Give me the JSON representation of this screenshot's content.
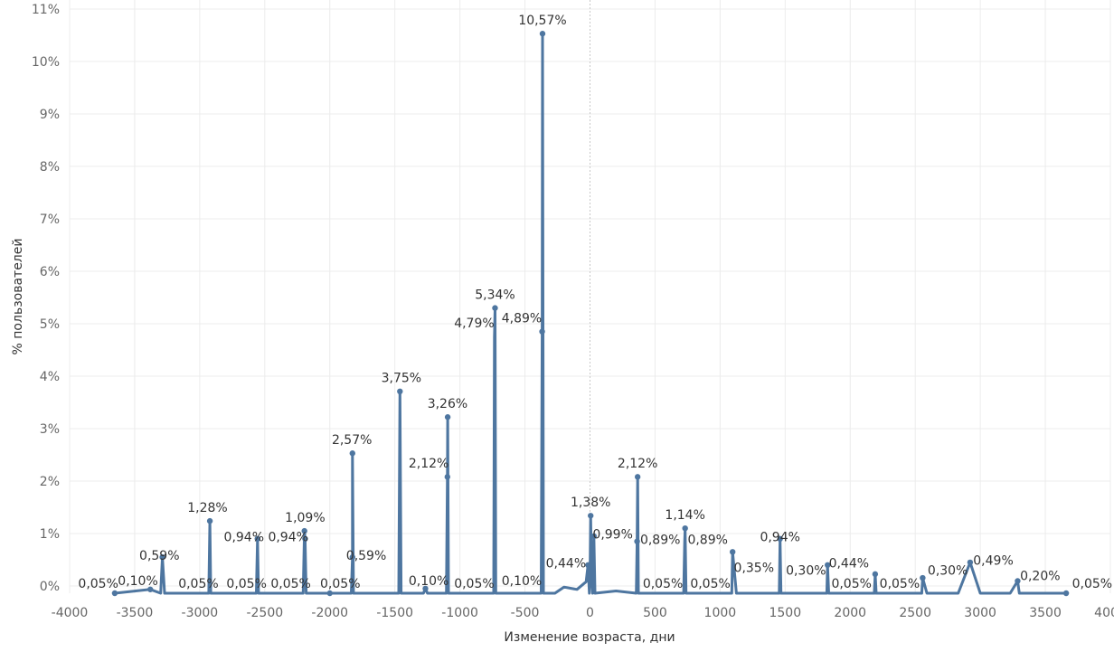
{
  "chart_data": {
    "type": "line",
    "xlabel": "Изменение возраста, дни",
    "ylabel": "% пользователей",
    "xlim": [
      -4000,
      4000
    ],
    "ylim": [
      0,
      11
    ],
    "y_unit": "%",
    "grid": true,
    "x_ticks": [
      {
        "value": -4000,
        "label": "-4000"
      },
      {
        "value": -3500,
        "label": "-3500"
      },
      {
        "value": -3000,
        "label": "-3000"
      },
      {
        "value": -2500,
        "label": "-2500"
      },
      {
        "value": -2000,
        "label": "-2000"
      },
      {
        "value": -1500,
        "label": "-1500"
      },
      {
        "value": -1000,
        "label": "-1000"
      },
      {
        "value": -500,
        "label": "-500"
      },
      {
        "value": 0,
        "label": "0"
      },
      {
        "value": 500,
        "label": "500"
      },
      {
        "value": 1000,
        "label": "1000"
      },
      {
        "value": 1500,
        "label": "1500"
      },
      {
        "value": 2000,
        "label": "2000"
      },
      {
        "value": 2500,
        "label": "2500"
      },
      {
        "value": 3000,
        "label": "3000"
      },
      {
        "value": 3500,
        "label": "3500"
      },
      {
        "value": 4000,
        "label": "4000"
      }
    ],
    "y_ticks": [
      {
        "value": 0,
        "label": "0%"
      },
      {
        "value": 1,
        "label": "1%"
      },
      {
        "value": 2,
        "label": "2%"
      },
      {
        "value": 3,
        "label": "3%"
      },
      {
        "value": 4,
        "label": "4%"
      },
      {
        "value": 5,
        "label": "5%"
      },
      {
        "value": 6,
        "label": "6%"
      },
      {
        "value": 7,
        "label": "7%"
      },
      {
        "value": 8,
        "label": "8%"
      },
      {
        "value": 9,
        "label": "9%"
      },
      {
        "value": 10,
        "label": "10%"
      },
      {
        "value": 11,
        "label": "11%"
      }
    ],
    "points": [
      {
        "x": -3653,
        "y": 0.0
      },
      {
        "x": -3380,
        "y": 0.05
      },
      {
        "x": -3300,
        "y": 0.0
      },
      {
        "x": -3287,
        "y": 0.55
      },
      {
        "x": -3270,
        "y": 0.0
      },
      {
        "x": -2930,
        "y": 0.0
      },
      {
        "x": -2922,
        "y": 1.24
      },
      {
        "x": -2915,
        "y": 0.0
      },
      {
        "x": -2565,
        "y": 0.0
      },
      {
        "x": -2556,
        "y": 0.9
      },
      {
        "x": -2548,
        "y": 0.0
      },
      {
        "x": -2205,
        "y": 0.0
      },
      {
        "x": -2195,
        "y": 1.05
      },
      {
        "x": -2190,
        "y": 0.9
      },
      {
        "x": -2182,
        "y": 0.0
      },
      {
        "x": -2000,
        "y": 0.0
      },
      {
        "x": -1835,
        "y": 0.0
      },
      {
        "x": -1826,
        "y": 0.55
      },
      {
        "x": -1826,
        "y": 2.53
      },
      {
        "x": -1818,
        "y": 0.0
      },
      {
        "x": -1600,
        "y": 0.0
      },
      {
        "x": -1470,
        "y": 0.0
      },
      {
        "x": -1461,
        "y": 3.71
      },
      {
        "x": -1452,
        "y": 0.0
      },
      {
        "x": -1280,
        "y": 0.0
      },
      {
        "x": -1265,
        "y": 0.06
      },
      {
        "x": -1250,
        "y": 0.0
      },
      {
        "x": -1104,
        "y": 0.0
      },
      {
        "x": -1096,
        "y": 2.08
      },
      {
        "x": -1094,
        "y": 3.22
      },
      {
        "x": -1088,
        "y": 0.0
      },
      {
        "x": -740,
        "y": 0.0
      },
      {
        "x": -735,
        "y": 4.75
      },
      {
        "x": -730,
        "y": 5.3
      },
      {
        "x": -724,
        "y": 0.0
      },
      {
        "x": -560,
        "y": 0.0
      },
      {
        "x": -375,
        "y": 0.0
      },
      {
        "x": -368,
        "y": 4.85
      },
      {
        "x": -365,
        "y": 10.53
      },
      {
        "x": -358,
        "y": 0.0
      },
      {
        "x": -270,
        "y": 0.0
      },
      {
        "x": -200,
        "y": 0.08
      },
      {
        "x": -100,
        "y": 0.05
      },
      {
        "x": -30,
        "y": 0.15
      },
      {
        "x": -15,
        "y": 0.4
      },
      {
        "x": -5,
        "y": 0.0
      },
      {
        "x": 0,
        "y": 0.2
      },
      {
        "x": 5,
        "y": 1.34
      },
      {
        "x": 12,
        "y": 0.3
      },
      {
        "x": 20,
        "y": 0.0
      },
      {
        "x": 30,
        "y": 0.95
      },
      {
        "x": 38,
        "y": 0.0
      },
      {
        "x": 200,
        "y": 0.03
      },
      {
        "x": 356,
        "y": 0.0
      },
      {
        "x": 362,
        "y": 0.85
      },
      {
        "x": 366,
        "y": 2.08
      },
      {
        "x": 372,
        "y": 0.0
      },
      {
        "x": 720,
        "y": 0.0
      },
      {
        "x": 728,
        "y": 0.85
      },
      {
        "x": 731,
        "y": 1.1
      },
      {
        "x": 738,
        "y": 0.0
      },
      {
        "x": 1090,
        "y": 0.0
      },
      {
        "x": 1096,
        "y": 0.65
      },
      {
        "x": 1125,
        "y": 0.0
      },
      {
        "x": 1455,
        "y": 0.0
      },
      {
        "x": 1461,
        "y": 0.9
      },
      {
        "x": 1468,
        "y": 0.0
      },
      {
        "x": 1820,
        "y": 0.0
      },
      {
        "x": 1826,
        "y": 0.4
      },
      {
        "x": 1835,
        "y": 0.0
      },
      {
        "x": 2185,
        "y": 0.0
      },
      {
        "x": 2192,
        "y": 0.25
      },
      {
        "x": 2200,
        "y": 0.0
      },
      {
        "x": 2550,
        "y": 0.0
      },
      {
        "x": 2557,
        "y": 0.2
      },
      {
        "x": 2590,
        "y": 0.0
      },
      {
        "x": 2830,
        "y": 0.0
      },
      {
        "x": 2922,
        "y": 0.45
      },
      {
        "x": 3000,
        "y": 0.0
      },
      {
        "x": 3230,
        "y": 0.0
      },
      {
        "x": 3287,
        "y": 0.16
      },
      {
        "x": 3300,
        "y": 0.0
      },
      {
        "x": 3660,
        "y": 0.0
      }
    ],
    "markers": [
      {
        "x": -3653,
        "y": 0.0
      },
      {
        "x": -3380,
        "y": 0.05
      },
      {
        "x": -3287,
        "y": 0.55
      },
      {
        "x": -2922,
        "y": 1.24
      },
      {
        "x": -2556,
        "y": 0.9
      },
      {
        "x": -2195,
        "y": 1.05
      },
      {
        "x": -2190,
        "y": 0.9
      },
      {
        "x": -2000,
        "y": 0.0
      },
      {
        "x": -1826,
        "y": 0.55
      },
      {
        "x": -1826,
        "y": 2.53
      },
      {
        "x": -1461,
        "y": 3.71
      },
      {
        "x": -1265,
        "y": 0.06
      },
      {
        "x": -1096,
        "y": 2.08
      },
      {
        "x": -1094,
        "y": 3.22
      },
      {
        "x": -730,
        "y": 5.3
      },
      {
        "x": -368,
        "y": 4.85
      },
      {
        "x": -365,
        "y": 10.53
      },
      {
        "x": -15,
        "y": 0.4
      },
      {
        "x": 5,
        "y": 1.34
      },
      {
        "x": 30,
        "y": 0.95
      },
      {
        "x": 362,
        "y": 0.85
      },
      {
        "x": 366,
        "y": 2.08
      },
      {
        "x": 731,
        "y": 1.1
      },
      {
        "x": 1096,
        "y": 0.65
      },
      {
        "x": 1461,
        "y": 0.9
      },
      {
        "x": 1826,
        "y": 0.4
      },
      {
        "x": 2192,
        "y": 0.25
      },
      {
        "x": 2557,
        "y": 0.2
      },
      {
        "x": 2922,
        "y": 0.45
      },
      {
        "x": 3287,
        "y": 0.16
      },
      {
        "x": 3660,
        "y": 0.0
      }
    ],
    "data_labels": [
      {
        "x": -3780,
        "y": 0.05,
        "text": "0,05%"
      },
      {
        "x": -3475,
        "y": 0.1,
        "text": "0,10%"
      },
      {
        "x": -3310,
        "y": 0.59,
        "text": "0,59%"
      },
      {
        "x": -3010,
        "y": 0.05,
        "text": "0,05%"
      },
      {
        "x": -2940,
        "y": 1.28,
        "text": "1,28%"
      },
      {
        "x": -2640,
        "y": 0.05,
        "text": "0,05%"
      },
      {
        "x": -2660,
        "y": 0.94,
        "text": "0,94%"
      },
      {
        "x": -2320,
        "y": 0.94,
        "text": "0,94%"
      },
      {
        "x": -2300,
        "y": 0.05,
        "text": "0,05%"
      },
      {
        "x": -2190,
        "y": 1.09,
        "text": "1,09%"
      },
      {
        "x": -1920,
        "y": 0.05,
        "text": "0,05%"
      },
      {
        "x": -1830,
        "y": 2.57,
        "text": "2,57%"
      },
      {
        "x": -1720,
        "y": 0.59,
        "text": "0,59%"
      },
      {
        "x": -1450,
        "y": 3.75,
        "text": "3,75%"
      },
      {
        "x": -1240,
        "y": 0.1,
        "text": "0,10%"
      },
      {
        "x": -1095,
        "y": 3.26,
        "text": "3,26%"
      },
      {
        "x": -1240,
        "y": 2.12,
        "text": "2,12%"
      },
      {
        "x": -890,
        "y": 0.05,
        "text": "0,05%"
      },
      {
        "x": -730,
        "y": 5.34,
        "text": "5,34%"
      },
      {
        "x": -890,
        "y": 4.79,
        "text": "4,79%"
      },
      {
        "x": -525,
        "y": 4.89,
        "text": "4,89%"
      },
      {
        "x": -525,
        "y": 0.1,
        "text": "0,10%"
      },
      {
        "x": -365,
        "y": 10.57,
        "text": "10,57%"
      },
      {
        "x": -185,
        "y": 0.44,
        "text": "0,44%"
      },
      {
        "x": 5,
        "y": 1.38,
        "text": "1,38%"
      },
      {
        "x": 175,
        "y": 0.99,
        "text": "0,99%"
      },
      {
        "x": 366,
        "y": 2.12,
        "text": "2,12%"
      },
      {
        "x": 540,
        "y": 0.89,
        "text": "0,89%"
      },
      {
        "x": 560,
        "y": 0.05,
        "text": "0,05%"
      },
      {
        "x": 731,
        "y": 1.14,
        "text": "1,14%"
      },
      {
        "x": 905,
        "y": 0.89,
        "text": "0,89%"
      },
      {
        "x": 925,
        "y": 0.05,
        "text": "0,05%"
      },
      {
        "x": 1260,
        "y": 0.35,
        "text": "0,35%"
      },
      {
        "x": 1461,
        "y": 0.94,
        "text": "0,94%"
      },
      {
        "x": 1660,
        "y": 0.3,
        "text": "0,30%"
      },
      {
        "x": 1990,
        "y": 0.44,
        "text": "0,44%"
      },
      {
        "x": 2010,
        "y": 0.05,
        "text": "0,05%"
      },
      {
        "x": 2380,
        "y": 0.05,
        "text": "0,05%"
      },
      {
        "x": 2750,
        "y": 0.3,
        "text": "0,30%"
      },
      {
        "x": 3100,
        "y": 0.49,
        "text": "0,49%"
      },
      {
        "x": 3460,
        "y": 0.2,
        "text": "0,20%"
      },
      {
        "x": 3860,
        "y": 0.05,
        "text": "0,05%"
      }
    ]
  }
}
